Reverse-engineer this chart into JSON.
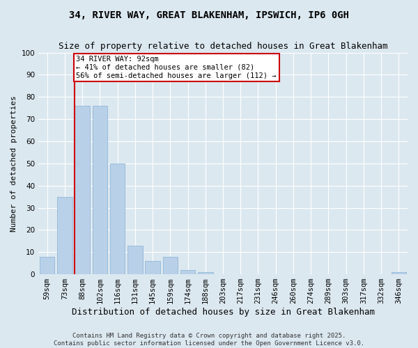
{
  "title1": "34, RIVER WAY, GREAT BLAKENHAM, IPSWICH, IP6 0GH",
  "title2": "Size of property relative to detached houses in Great Blakenham",
  "xlabel": "Distribution of detached houses by size in Great Blakenham",
  "ylabel": "Number of detached properties",
  "categories": [
    "59sqm",
    "73sqm",
    "88sqm",
    "102sqm",
    "116sqm",
    "131sqm",
    "145sqm",
    "159sqm",
    "174sqm",
    "188sqm",
    "203sqm",
    "217sqm",
    "231sqm",
    "246sqm",
    "260sqm",
    "274sqm",
    "289sqm",
    "303sqm",
    "317sqm",
    "332sqm",
    "346sqm"
  ],
  "values": [
    8,
    35,
    76,
    76,
    50,
    13,
    6,
    8,
    2,
    1,
    0,
    0,
    0,
    0,
    0,
    0,
    0,
    0,
    0,
    0,
    1
  ],
  "bar_color": "#b8d0e8",
  "bar_edge_color": "#90b8d8",
  "line_color": "#cc0000",
  "line_x_index": 2,
  "annotation_text": "34 RIVER WAY: 92sqm\n← 41% of detached houses are smaller (82)\n56% of semi-detached houses are larger (112) →",
  "annotation_box_color": "#ffffff",
  "annotation_box_edge_color": "#cc0000",
  "background_color": "#dce8f0",
  "grid_color": "#ffffff",
  "ylim": [
    0,
    100
  ],
  "yticks": [
    0,
    10,
    20,
    30,
    40,
    50,
    60,
    70,
    80,
    90,
    100
  ],
  "footer_text": "Contains HM Land Registry data © Crown copyright and database right 2025.\nContains public sector information licensed under the Open Government Licence v3.0.",
  "title_fontsize": 10,
  "subtitle_fontsize": 9,
  "ylabel_fontsize": 8,
  "xlabel_fontsize": 9,
  "tick_fontsize": 7.5,
  "annotation_fontsize": 7.5,
  "footer_fontsize": 6.5
}
